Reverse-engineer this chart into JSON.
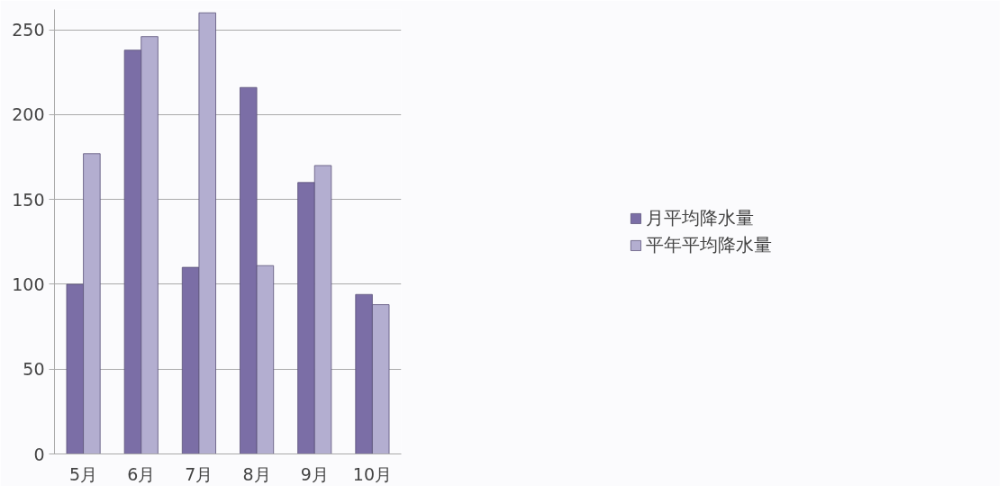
{
  "chart_data": {
    "type": "bar",
    "categories": [
      "5月",
      "6月",
      "7月",
      "8月",
      "9月",
      "10月"
    ],
    "series": [
      {
        "name": "月平均降水量",
        "color": "#7b6ea6",
        "values": [
          100,
          238,
          110,
          216,
          160,
          94
        ]
      },
      {
        "name": "平年平均降水量",
        "color": "#b3aed0",
        "values": [
          177,
          246,
          260,
          111,
          170,
          88
        ]
      }
    ],
    "ylim": [
      0,
      262
    ],
    "yticks": [
      0,
      50,
      100,
      150,
      200,
      250
    ],
    "grid": "y",
    "legend": "right"
  }
}
